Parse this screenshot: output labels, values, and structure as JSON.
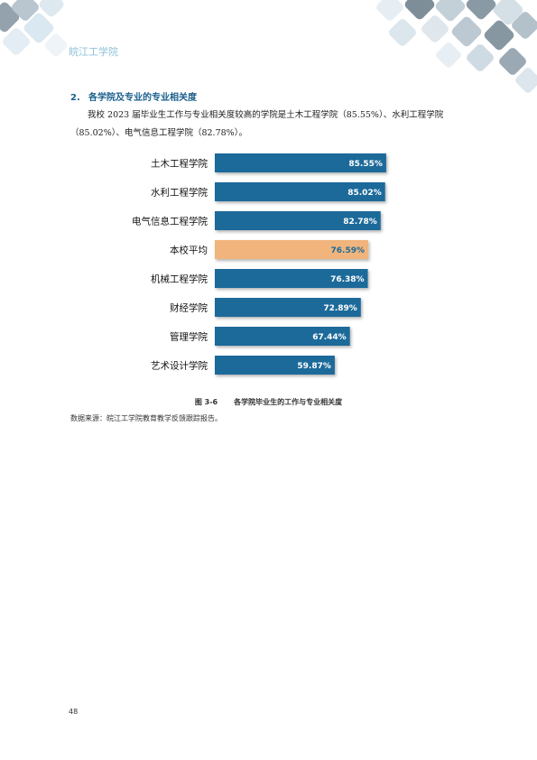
{
  "header": {
    "school": "皖江工学院"
  },
  "section": {
    "number": "2.",
    "title": "各学院及专业的专业相关度",
    "paragraph": "我校 2023 届毕业生工作与专业相关度较高的学院是土木工程学院（85.55%）、水利工程学院（85.02%）、电气信息工程学院（82.78%）。"
  },
  "chart_data": {
    "type": "bar",
    "orientation": "horizontal",
    "categories": [
      "土木工程学院",
      "水利工程学院",
      "电气信息工程学院",
      "本校平均",
      "机械工程学院",
      "财经学院",
      "管理学院",
      "艺术设计学院"
    ],
    "values": [
      85.55,
      85.02,
      82.78,
      76.59,
      76.38,
      72.89,
      67.44,
      59.87
    ],
    "value_labels": [
      "85.55%",
      "85.02%",
      "82.78%",
      "76.59%",
      "76.38%",
      "72.89%",
      "67.44%",
      "59.87%"
    ],
    "highlight_index": 3,
    "colors": {
      "bar": "#1c6b9a",
      "highlight": "#f0b47b",
      "label": "#ffffff",
      "highlight_label": "#1c6b9a"
    },
    "xlim": [
      0,
      100
    ]
  },
  "figure": {
    "number": "图 3-6",
    "title": "各学院毕业生的工作与专业相关度"
  },
  "source": "数据来源：皖江工学院教育教学反馈跟踪报告。",
  "page_number": "48"
}
